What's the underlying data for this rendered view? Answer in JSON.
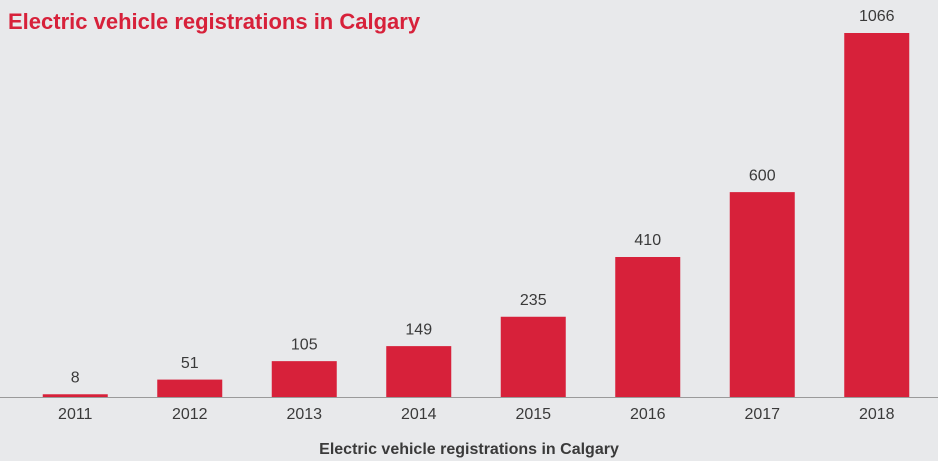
{
  "chart_data": {
    "type": "bar",
    "title": "Electric vehicle registrations in Calgary",
    "x_label": "Electric vehicle registrations in Calgary",
    "categories": [
      "2011",
      "2012",
      "2013",
      "2014",
      "2015",
      "2016",
      "2017",
      "2018"
    ],
    "values": [
      8,
      51,
      105,
      149,
      235,
      410,
      600,
      1066
    ],
    "color": "#d7213a",
    "grid": false
  }
}
